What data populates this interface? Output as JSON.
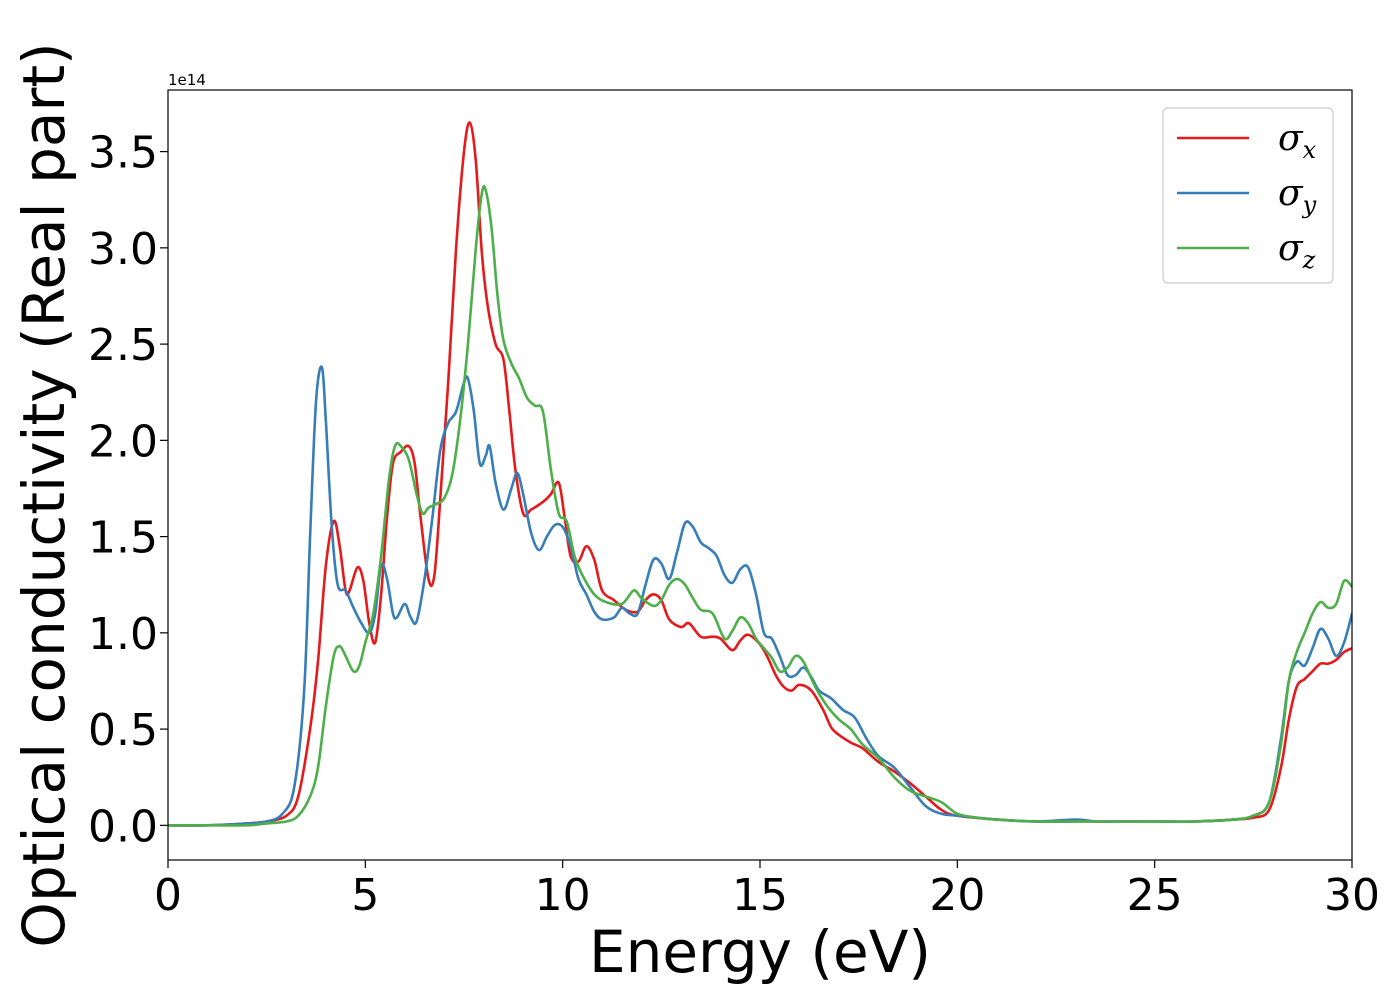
{
  "chart_data": {
    "type": "line",
    "title": "",
    "xlabel": "Energy (eV)",
    "ylabel": "Optical conductivity (Real part)",
    "y_offset_label": "1e14",
    "xlim": [
      0,
      30
    ],
    "ylim": [
      -0.18,
      3.82
    ],
    "xticks": [
      0,
      5,
      10,
      15,
      20,
      25,
      30
    ],
    "xtick_labels": [
      "0",
      "5",
      "10",
      "15",
      "20",
      "25",
      "30"
    ],
    "yticks": [
      0.0,
      0.5,
      1.0,
      1.5,
      2.0,
      2.5,
      3.0,
      3.5
    ],
    "ytick_labels": [
      "0.0",
      "0.5",
      "1.0",
      "1.5",
      "2.0",
      "2.5",
      "3.0",
      "3.5"
    ],
    "grid": false,
    "legend_position": "top-right",
    "series": [
      {
        "name": "σx",
        "legend_symbol": "σ",
        "legend_subscript": "x",
        "color": "#e41a1c",
        "points": [
          [
            0,
            0
          ],
          [
            1,
            0
          ],
          [
            2,
            0.01
          ],
          [
            2.5,
            0.02
          ],
          [
            3,
            0.05
          ],
          [
            3.3,
            0.15
          ],
          [
            3.6,
            0.5
          ],
          [
            3.8,
            0.85
          ],
          [
            4.0,
            1.35
          ],
          [
            4.2,
            1.58
          ],
          [
            4.35,
            1.45
          ],
          [
            4.5,
            1.22
          ],
          [
            4.6,
            1.22
          ],
          [
            4.8,
            1.34
          ],
          [
            4.95,
            1.27
          ],
          [
            5.1,
            1.05
          ],
          [
            5.25,
            0.95
          ],
          [
            5.4,
            1.2
          ],
          [
            5.55,
            1.6
          ],
          [
            5.7,
            1.88
          ],
          [
            5.9,
            1.94
          ],
          [
            6.1,
            1.97
          ],
          [
            6.25,
            1.88
          ],
          [
            6.4,
            1.6
          ],
          [
            6.6,
            1.28
          ],
          [
            6.75,
            1.3
          ],
          [
            6.9,
            1.7
          ],
          [
            7.1,
            2.3
          ],
          [
            7.3,
            3.0
          ],
          [
            7.5,
            3.5
          ],
          [
            7.65,
            3.65
          ],
          [
            7.8,
            3.45
          ],
          [
            7.95,
            2.98
          ],
          [
            8.1,
            2.7
          ],
          [
            8.3,
            2.5
          ],
          [
            8.5,
            2.42
          ],
          [
            8.65,
            2.15
          ],
          [
            8.8,
            1.85
          ],
          [
            9.0,
            1.62
          ],
          [
            9.2,
            1.64
          ],
          [
            9.5,
            1.68
          ],
          [
            9.7,
            1.72
          ],
          [
            9.9,
            1.78
          ],
          [
            10.05,
            1.6
          ],
          [
            10.2,
            1.4
          ],
          [
            10.4,
            1.37
          ],
          [
            10.6,
            1.45
          ],
          [
            10.8,
            1.38
          ],
          [
            11.0,
            1.22
          ],
          [
            11.3,
            1.17
          ],
          [
            11.6,
            1.12
          ],
          [
            11.9,
            1.11
          ],
          [
            12.1,
            1.17
          ],
          [
            12.3,
            1.2
          ],
          [
            12.5,
            1.17
          ],
          [
            12.7,
            1.07
          ],
          [
            13.0,
            1.03
          ],
          [
            13.2,
            1.05
          ],
          [
            13.5,
            0.98
          ],
          [
            13.8,
            0.98
          ],
          [
            14.0,
            0.97
          ],
          [
            14.3,
            0.91
          ],
          [
            14.5,
            0.96
          ],
          [
            14.7,
            0.99
          ],
          [
            15.0,
            0.94
          ],
          [
            15.2,
            0.87
          ],
          [
            15.4,
            0.78
          ],
          [
            15.6,
            0.72
          ],
          [
            15.8,
            0.7
          ],
          [
            16.0,
            0.73
          ],
          [
            16.3,
            0.7
          ],
          [
            16.6,
            0.6
          ],
          [
            16.8,
            0.51
          ],
          [
            17.0,
            0.47
          ],
          [
            17.3,
            0.43
          ],
          [
            17.6,
            0.4
          ],
          [
            18.0,
            0.33
          ],
          [
            18.4,
            0.28
          ],
          [
            18.8,
            0.22
          ],
          [
            19.2,
            0.15
          ],
          [
            19.6,
            0.08
          ],
          [
            20.0,
            0.05
          ],
          [
            21,
            0.03
          ],
          [
            22,
            0.02
          ],
          [
            23,
            0.02
          ],
          [
            24,
            0.02
          ],
          [
            25,
            0.02
          ],
          [
            26,
            0.02
          ],
          [
            27,
            0.03
          ],
          [
            27.5,
            0.04
          ],
          [
            27.9,
            0.08
          ],
          [
            28.2,
            0.3
          ],
          [
            28.4,
            0.55
          ],
          [
            28.6,
            0.72
          ],
          [
            28.8,
            0.76
          ],
          [
            29.0,
            0.8
          ],
          [
            29.2,
            0.84
          ],
          [
            29.4,
            0.84
          ],
          [
            29.6,
            0.86
          ],
          [
            29.8,
            0.9
          ],
          [
            30.0,
            0.92
          ]
        ]
      },
      {
        "name": "σy",
        "legend_symbol": "σ",
        "legend_subscript": "y",
        "color": "#377eb8",
        "points": [
          [
            0,
            0
          ],
          [
            1,
            0
          ],
          [
            2,
            0.01
          ],
          [
            2.5,
            0.02
          ],
          [
            2.9,
            0.06
          ],
          [
            3.2,
            0.2
          ],
          [
            3.45,
            0.7
          ],
          [
            3.6,
            1.5
          ],
          [
            3.75,
            2.2
          ],
          [
            3.9,
            2.38
          ],
          [
            4.0,
            2.1
          ],
          [
            4.15,
            1.55
          ],
          [
            4.3,
            1.25
          ],
          [
            4.5,
            1.22
          ],
          [
            4.7,
            1.13
          ],
          [
            4.9,
            1.05
          ],
          [
            5.1,
            1.0
          ],
          [
            5.25,
            1.1
          ],
          [
            5.4,
            1.35
          ],
          [
            5.55,
            1.28
          ],
          [
            5.7,
            1.1
          ],
          [
            5.8,
            1.08
          ],
          [
            6.0,
            1.15
          ],
          [
            6.15,
            1.08
          ],
          [
            6.3,
            1.06
          ],
          [
            6.5,
            1.28
          ],
          [
            6.7,
            1.6
          ],
          [
            6.9,
            1.95
          ],
          [
            7.1,
            2.09
          ],
          [
            7.3,
            2.15
          ],
          [
            7.5,
            2.3
          ],
          [
            7.6,
            2.32
          ],
          [
            7.75,
            2.15
          ],
          [
            7.9,
            1.88
          ],
          [
            8.05,
            1.92
          ],
          [
            8.15,
            1.97
          ],
          [
            8.3,
            1.78
          ],
          [
            8.5,
            1.64
          ],
          [
            8.7,
            1.75
          ],
          [
            8.85,
            1.83
          ],
          [
            9.0,
            1.72
          ],
          [
            9.2,
            1.52
          ],
          [
            9.4,
            1.43
          ],
          [
            9.6,
            1.5
          ],
          [
            9.8,
            1.56
          ],
          [
            10.0,
            1.55
          ],
          [
            10.2,
            1.45
          ],
          [
            10.4,
            1.28
          ],
          [
            10.6,
            1.2
          ],
          [
            10.8,
            1.11
          ],
          [
            11.0,
            1.07
          ],
          [
            11.3,
            1.08
          ],
          [
            11.5,
            1.13
          ],
          [
            11.7,
            1.1
          ],
          [
            11.9,
            1.1
          ],
          [
            12.1,
            1.25
          ],
          [
            12.3,
            1.38
          ],
          [
            12.5,
            1.36
          ],
          [
            12.7,
            1.28
          ],
          [
            12.9,
            1.42
          ],
          [
            13.1,
            1.57
          ],
          [
            13.3,
            1.55
          ],
          [
            13.5,
            1.47
          ],
          [
            13.7,
            1.44
          ],
          [
            13.9,
            1.4
          ],
          [
            14.1,
            1.3
          ],
          [
            14.3,
            1.26
          ],
          [
            14.5,
            1.33
          ],
          [
            14.7,
            1.34
          ],
          [
            14.9,
            1.2
          ],
          [
            15.1,
            1.0
          ],
          [
            15.3,
            0.97
          ],
          [
            15.5,
            0.88
          ],
          [
            15.7,
            0.78
          ],
          [
            15.9,
            0.78
          ],
          [
            16.1,
            0.82
          ],
          [
            16.3,
            0.77
          ],
          [
            16.5,
            0.7
          ],
          [
            16.8,
            0.66
          ],
          [
            17.1,
            0.6
          ],
          [
            17.4,
            0.56
          ],
          [
            17.7,
            0.45
          ],
          [
            18.0,
            0.36
          ],
          [
            18.4,
            0.3
          ],
          [
            18.8,
            0.2
          ],
          [
            19.2,
            0.1
          ],
          [
            19.6,
            0.06
          ],
          [
            20.0,
            0.05
          ],
          [
            21,
            0.03
          ],
          [
            22,
            0.02
          ],
          [
            23,
            0.03
          ],
          [
            23.5,
            0.02
          ],
          [
            24,
            0.02
          ],
          [
            25,
            0.02
          ],
          [
            26,
            0.02
          ],
          [
            27,
            0.03
          ],
          [
            27.5,
            0.05
          ],
          [
            27.9,
            0.12
          ],
          [
            28.2,
            0.45
          ],
          [
            28.4,
            0.75
          ],
          [
            28.6,
            0.85
          ],
          [
            28.8,
            0.83
          ],
          [
            29.0,
            0.92
          ],
          [
            29.2,
            1.02
          ],
          [
            29.4,
            0.97
          ],
          [
            29.6,
            0.88
          ],
          [
            29.8,
            0.95
          ],
          [
            30.0,
            1.1
          ]
        ]
      },
      {
        "name": "σz",
        "legend_symbol": "σ",
        "legend_subscript": "z",
        "color": "#4daf4a",
        "points": [
          [
            0,
            0
          ],
          [
            1,
            0
          ],
          [
            2,
            0.0
          ],
          [
            2.5,
            0.01
          ],
          [
            3,
            0.02
          ],
          [
            3.3,
            0.05
          ],
          [
            3.6,
            0.15
          ],
          [
            3.8,
            0.3
          ],
          [
            4.0,
            0.62
          ],
          [
            4.2,
            0.88
          ],
          [
            4.35,
            0.93
          ],
          [
            4.5,
            0.88
          ],
          [
            4.7,
            0.8
          ],
          [
            4.85,
            0.83
          ],
          [
            5.0,
            0.95
          ],
          [
            5.2,
            1.1
          ],
          [
            5.4,
            1.4
          ],
          [
            5.6,
            1.8
          ],
          [
            5.75,
            1.97
          ],
          [
            5.9,
            1.97
          ],
          [
            6.1,
            1.9
          ],
          [
            6.3,
            1.72
          ],
          [
            6.45,
            1.62
          ],
          [
            6.6,
            1.65
          ],
          [
            6.8,
            1.67
          ],
          [
            7.0,
            1.7
          ],
          [
            7.2,
            1.82
          ],
          [
            7.4,
            2.1
          ],
          [
            7.6,
            2.5
          ],
          [
            7.8,
            3.0
          ],
          [
            7.95,
            3.28
          ],
          [
            8.05,
            3.3
          ],
          [
            8.2,
            3.1
          ],
          [
            8.35,
            2.75
          ],
          [
            8.5,
            2.52
          ],
          [
            8.7,
            2.4
          ],
          [
            8.9,
            2.32
          ],
          [
            9.1,
            2.22
          ],
          [
            9.3,
            2.18
          ],
          [
            9.5,
            2.15
          ],
          [
            9.7,
            1.85
          ],
          [
            9.9,
            1.62
          ],
          [
            10.1,
            1.58
          ],
          [
            10.3,
            1.4
          ],
          [
            10.5,
            1.3
          ],
          [
            10.8,
            1.2
          ],
          [
            11.1,
            1.16
          ],
          [
            11.5,
            1.15
          ],
          [
            11.8,
            1.22
          ],
          [
            12.0,
            1.18
          ],
          [
            12.3,
            1.14
          ],
          [
            12.5,
            1.17
          ],
          [
            12.7,
            1.25
          ],
          [
            12.9,
            1.28
          ],
          [
            13.1,
            1.25
          ],
          [
            13.3,
            1.18
          ],
          [
            13.5,
            1.12
          ],
          [
            13.8,
            1.1
          ],
          [
            14.1,
            0.97
          ],
          [
            14.3,
            1.01
          ],
          [
            14.5,
            1.08
          ],
          [
            14.7,
            1.05
          ],
          [
            14.9,
            0.97
          ],
          [
            15.1,
            0.92
          ],
          [
            15.3,
            0.87
          ],
          [
            15.5,
            0.8
          ],
          [
            15.7,
            0.82
          ],
          [
            15.9,
            0.88
          ],
          [
            16.1,
            0.85
          ],
          [
            16.4,
            0.72
          ],
          [
            16.7,
            0.62
          ],
          [
            17.0,
            0.55
          ],
          [
            17.3,
            0.5
          ],
          [
            17.6,
            0.42
          ],
          [
            18.0,
            0.35
          ],
          [
            18.4,
            0.25
          ],
          [
            18.8,
            0.18
          ],
          [
            19.2,
            0.15
          ],
          [
            19.6,
            0.12
          ],
          [
            20.0,
            0.06
          ],
          [
            20.5,
            0.04
          ],
          [
            21,
            0.03
          ],
          [
            22,
            0.02
          ],
          [
            23,
            0.02
          ],
          [
            24,
            0.02
          ],
          [
            25,
            0.02
          ],
          [
            26,
            0.02
          ],
          [
            27,
            0.03
          ],
          [
            27.5,
            0.05
          ],
          [
            27.9,
            0.12
          ],
          [
            28.2,
            0.42
          ],
          [
            28.4,
            0.75
          ],
          [
            28.6,
            0.9
          ],
          [
            28.8,
            1.0
          ],
          [
            29.0,
            1.1
          ],
          [
            29.2,
            1.16
          ],
          [
            29.4,
            1.13
          ],
          [
            29.6,
            1.15
          ],
          [
            29.8,
            1.27
          ],
          [
            30.0,
            1.24
          ]
        ]
      }
    ]
  }
}
